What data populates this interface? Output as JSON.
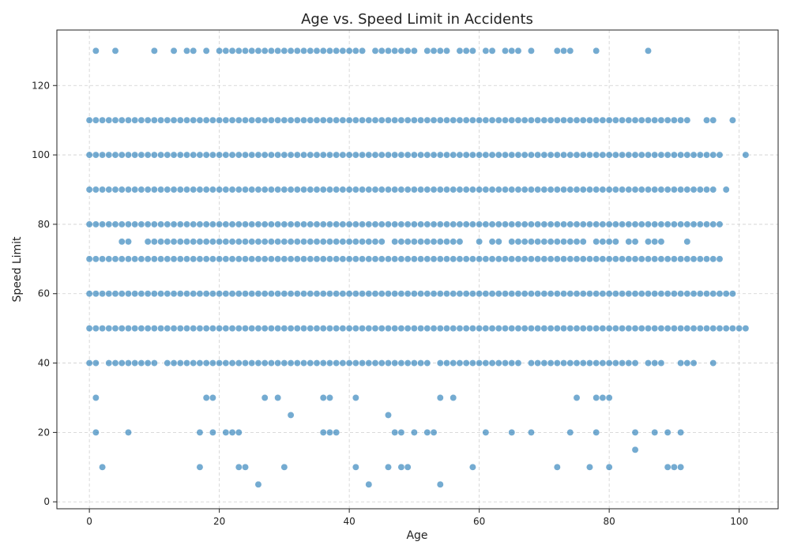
{
  "chart_data": {
    "type": "scatter",
    "title": "Age vs. Speed Limit in Accidents",
    "xlabel": "Age",
    "ylabel": "Speed Limit",
    "xlim": [
      -5,
      106
    ],
    "ylim": [
      -2,
      136
    ],
    "xticks": [
      0,
      20,
      40,
      60,
      80,
      100
    ],
    "yticks": [
      0,
      20,
      40,
      60,
      80,
      100,
      120
    ],
    "grid": true,
    "legend": "none",
    "color": "#1f77b4",
    "bands": [
      {
        "speed": 50,
        "ages": "0-99",
        "extra": [
          100,
          101
        ]
      },
      {
        "speed": 60,
        "ages": "0-99"
      },
      {
        "speed": 70,
        "ages": "0-97"
      },
      {
        "speed": 80,
        "ages": "0-97"
      },
      {
        "speed": 90,
        "ages": "0-96",
        "extra": [
          98
        ]
      },
      {
        "speed": 100,
        "ages": "0-97",
        "extra": [
          101
        ]
      },
      {
        "speed": 110,
        "ages": "0-92",
        "extra": [
          95,
          96,
          99
        ]
      }
    ],
    "speed_40_ages": [
      0,
      1,
      3,
      4,
      5,
      6,
      7,
      8,
      9,
      10,
      12,
      13,
      14,
      15,
      16,
      17,
      18,
      19,
      20,
      21,
      22,
      23,
      24,
      25,
      26,
      27,
      28,
      29,
      30,
      31,
      32,
      33,
      34,
      35,
      36,
      37,
      38,
      39,
      40,
      41,
      42,
      43,
      44,
      45,
      46,
      47,
      48,
      49,
      50,
      51,
      52,
      54,
      55,
      56,
      57,
      58,
      59,
      60,
      61,
      62,
      63,
      64,
      65,
      66,
      68,
      69,
      70,
      71,
      72,
      73,
      74,
      75,
      76,
      77,
      78,
      79,
      80,
      81,
      82,
      83,
      84,
      86,
      87,
      88,
      91,
      92,
      93,
      96
    ],
    "speed_75_ages": [
      5,
      6,
      9,
      10,
      11,
      12,
      13,
      14,
      15,
      16,
      17,
      18,
      19,
      20,
      21,
      22,
      23,
      24,
      25,
      26,
      27,
      28,
      29,
      30,
      31,
      32,
      33,
      34,
      35,
      36,
      37,
      38,
      39,
      40,
      41,
      42,
      43,
      44,
      45,
      47,
      48,
      49,
      50,
      51,
      52,
      53,
      54,
      55,
      56,
      57,
      60,
      62,
      63,
      65,
      66,
      67,
      68,
      69,
      70,
      71,
      72,
      73,
      74,
      75,
      76,
      78,
      79,
      80,
      81,
      83,
      84,
      86,
      87,
      88,
      92
    ],
    "speed_130_ages": [
      1,
      4,
      10,
      13,
      15,
      16,
      18,
      20,
      21,
      22,
      23,
      24,
      25,
      26,
      27,
      28,
      29,
      30,
      31,
      32,
      33,
      34,
      35,
      36,
      37,
      38,
      39,
      40,
      41,
      42,
      44,
      45,
      46,
      47,
      48,
      49,
      50,
      52,
      53,
      54,
      55,
      57,
      58,
      59,
      61,
      62,
      64,
      65,
      66,
      68,
      72,
      73,
      74,
      78,
      86
    ],
    "points_misc": [
      [
        1,
        30
      ],
      [
        1,
        20
      ],
      [
        2,
        10
      ],
      [
        6,
        20
      ],
      [
        17,
        20
      ],
      [
        17,
        10
      ],
      [
        18,
        30
      ],
      [
        19,
        30
      ],
      [
        19,
        20
      ],
      [
        21,
        20
      ],
      [
        22,
        20
      ],
      [
        23,
        20
      ],
      [
        23,
        10
      ],
      [
        24,
        10
      ],
      [
        26,
        5
      ],
      [
        27,
        30
      ],
      [
        29,
        30
      ],
      [
        30,
        10
      ],
      [
        31,
        25
      ],
      [
        36,
        30
      ],
      [
        36,
        20
      ],
      [
        37,
        30
      ],
      [
        37,
        20
      ],
      [
        38,
        20
      ],
      [
        41,
        30
      ],
      [
        41,
        10
      ],
      [
        43,
        5
      ],
      [
        46,
        25
      ],
      [
        46,
        10
      ],
      [
        47,
        20
      ],
      [
        48,
        20
      ],
      [
        48,
        10
      ],
      [
        49,
        10
      ],
      [
        50,
        20
      ],
      [
        52,
        20
      ],
      [
        53,
        20
      ],
      [
        54,
        30
      ],
      [
        54,
        5
      ],
      [
        56,
        30
      ],
      [
        59,
        10
      ],
      [
        61,
        20
      ],
      [
        65,
        20
      ],
      [
        68,
        20
      ],
      [
        72,
        10
      ],
      [
        74,
        20
      ],
      [
        75,
        30
      ],
      [
        77,
        10
      ],
      [
        78,
        30
      ],
      [
        78,
        20
      ],
      [
        79,
        30
      ],
      [
        80,
        30
      ],
      [
        80,
        10
      ],
      [
        84,
        20
      ],
      [
        84,
        15
      ],
      [
        87,
        20
      ],
      [
        89,
        20
      ],
      [
        89,
        10
      ],
      [
        90,
        10
      ],
      [
        91,
        20
      ],
      [
        91,
        10
      ]
    ]
  }
}
